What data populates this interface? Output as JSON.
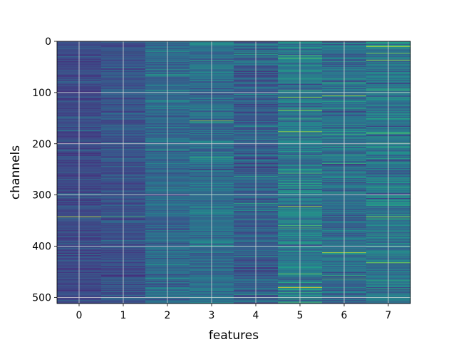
{
  "chart_data": {
    "type": "heatmap",
    "title": "",
    "xlabel": "features",
    "ylabel": "channels",
    "x_categories": [
      "0",
      "1",
      "2",
      "3",
      "4",
      "5",
      "6",
      "7"
    ],
    "y_range": [
      0,
      512
    ],
    "y_inverted": true,
    "y_ticks": [
      0,
      100,
      200,
      300,
      400,
      500
    ],
    "grid": true,
    "colormap": "viridis",
    "value_range": [
      0,
      1
    ],
    "column_mean_level": [
      0.22,
      0.25,
      0.34,
      0.36,
      0.3,
      0.4,
      0.36,
      0.4
    ],
    "column_spread": [
      0.08,
      0.09,
      0.12,
      0.13,
      0.14,
      0.16,
      0.15,
      0.17
    ],
    "highlights": [
      {
        "feature": "0",
        "channel": 342,
        "level": 0.95
      },
      {
        "feature": "1",
        "channel": 342,
        "level": 0.7
      },
      {
        "feature": "3",
        "channel": 155,
        "level": 0.85
      },
      {
        "feature": "5",
        "channel": 176,
        "level": 0.9
      },
      {
        "feature": "5",
        "channel": 322,
        "level": 0.9
      },
      {
        "feature": "5",
        "channel": 480,
        "level": 0.95
      },
      {
        "feature": "6",
        "channel": 106,
        "level": 0.9
      },
      {
        "feature": "6",
        "channel": 222,
        "level": 0.65
      },
      {
        "feature": "6",
        "channel": 412,
        "level": 0.9
      },
      {
        "feature": "7",
        "channel": 10,
        "level": 0.95
      },
      {
        "feature": "7",
        "channel": 36,
        "level": 0.9
      },
      {
        "feature": "7",
        "channel": 342,
        "level": 0.85
      },
      {
        "feature": "7",
        "channel": 432,
        "level": 0.85
      }
    ]
  }
}
